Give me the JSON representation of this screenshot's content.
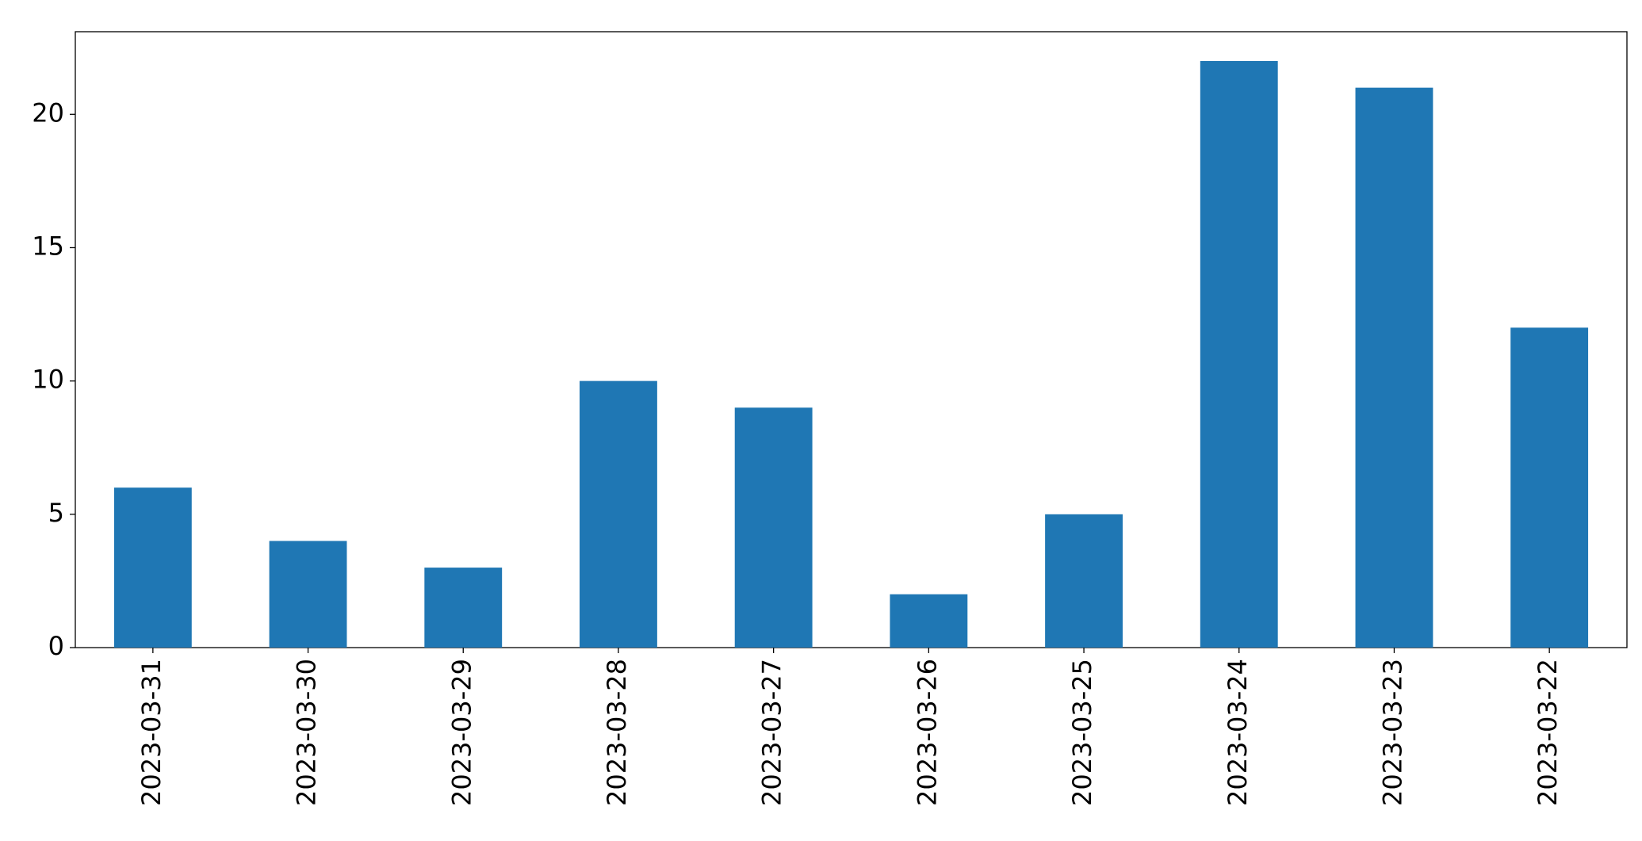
{
  "chart_data": {
    "type": "bar",
    "categories": [
      "2023-03-31",
      "2023-03-30",
      "2023-03-29",
      "2023-03-28",
      "2023-03-27",
      "2023-03-26",
      "2023-03-25",
      "2023-03-24",
      "2023-03-23",
      "2023-03-22"
    ],
    "values": [
      6,
      4,
      3,
      10,
      9,
      2,
      5,
      22,
      21,
      12
    ],
    "color": "#1f77b4",
    "ylim": [
      0,
      23.1
    ],
    "yticks": [
      0,
      5,
      10,
      15,
      20
    ],
    "grid": false
  }
}
